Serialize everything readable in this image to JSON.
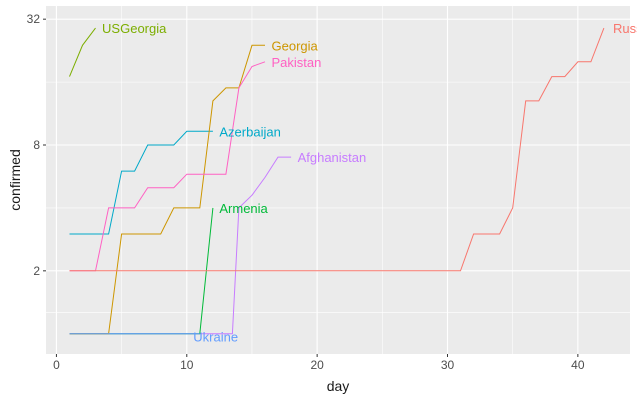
{
  "chart_data": {
    "type": "line",
    "title": "",
    "xlabel": "day",
    "ylabel": "confirmed",
    "y_scale": "log2",
    "xlim": [
      -0.8,
      44
    ],
    "ylim": [
      0.8,
      37
    ],
    "x_ticks": [
      0,
      10,
      20,
      30,
      40
    ],
    "x_tick_labels": [
      "0",
      "10",
      "20",
      "30",
      "40"
    ],
    "y_ticks": [
      2,
      8,
      32
    ],
    "y_tick_labels": [
      "2",
      "8",
      "32"
    ],
    "grid": true,
    "legend": "none",
    "series": [
      {
        "name": "Afghanistan",
        "color": "#C77CFF",
        "label_at": [
          18.5,
          7
        ],
        "x": [
          1,
          12,
          13,
          13.5,
          14,
          15,
          16,
          17,
          18
        ],
        "y": [
          1,
          1,
          1,
          1,
          4,
          4.6,
          5.6,
          7,
          7
        ]
      },
      {
        "name": "Armenia",
        "color": "#00BA38",
        "label_at": [
          12.5,
          4
        ],
        "x": [
          1,
          11,
          12
        ],
        "y": [
          1,
          1,
          4
        ]
      },
      {
        "name": "Azerbaijan",
        "color": "#00A9C9",
        "label_at": [
          12.5,
          9.3
        ],
        "x": [
          1,
          4,
          5,
          6,
          7,
          8,
          9,
          10,
          11,
          12
        ],
        "y": [
          3,
          3,
          6,
          6,
          8,
          8,
          8,
          9.3,
          9.3,
          9.3
        ]
      },
      {
        "name": "Georgia",
        "color": "#CD9600",
        "label_at": [
          16.5,
          24
        ],
        "x": [
          1,
          4,
          5,
          6,
          7,
          8,
          9,
          10,
          11,
          12,
          13,
          14,
          15,
          16
        ],
        "y": [
          1,
          1,
          3,
          3,
          3,
          3,
          4,
          4,
          4,
          13,
          15,
          15,
          24,
          24
        ]
      },
      {
        "name": "Pakistan",
        "color": "#FF61C3",
        "label_at": [
          16.5,
          20
        ],
        "x": [
          1,
          3,
          4,
          5,
          6,
          7,
          8,
          9,
          10,
          11,
          12,
          13,
          14,
          15,
          16
        ],
        "y": [
          2,
          2,
          4,
          4,
          4,
          5,
          5,
          5,
          5.8,
          5.8,
          5.8,
          5.8,
          15,
          19,
          20
        ]
      },
      {
        "name": "Russia",
        "color": "#F8766D",
        "label_at": [
          42.7,
          29
        ],
        "x": [
          1,
          31,
          32,
          33,
          34,
          35,
          36,
          37,
          38,
          39,
          40,
          41,
          42
        ],
        "y": [
          2,
          2,
          3,
          3,
          3,
          4,
          13,
          13,
          17,
          17,
          20,
          20,
          29
        ]
      },
      {
        "name": "Ukraine",
        "color": "#619CFF",
        "label_at": [
          10.5,
          0.97
        ],
        "x": [
          1,
          11
        ],
        "y": [
          1,
          1
        ]
      },
      {
        "name": "USGeorgia",
        "color": "#7CAE00",
        "label_at": [
          3.5,
          29
        ],
        "x": [
          1,
          2,
          3
        ],
        "y": [
          17,
          24,
          29
        ]
      }
    ]
  }
}
